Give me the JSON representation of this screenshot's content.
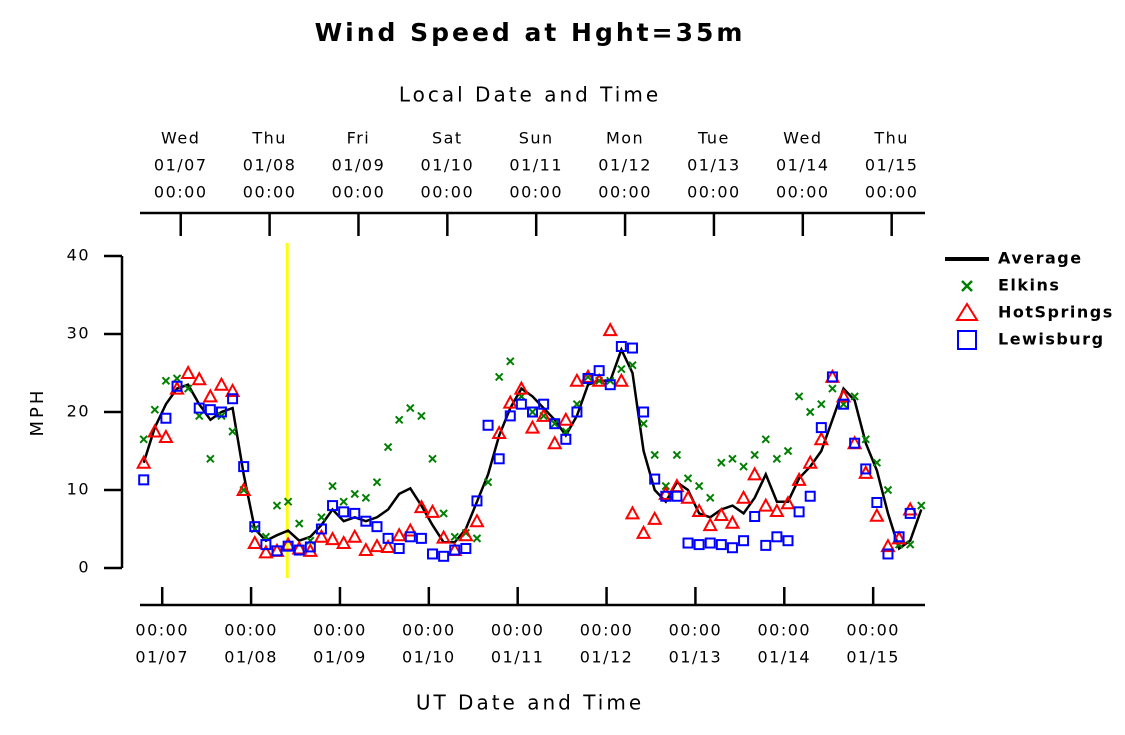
{
  "chart_data": {
    "type": "line",
    "title": "Wind Speed at Hght=35m",
    "x2label": "Local Date and Time",
    "xlabel": "UT Date and Time",
    "ylabel": "MPH",
    "xlim": [
      "01/06 18:00",
      "01/15 14:00"
    ],
    "ylim": [
      0,
      40
    ],
    "yticks": [
      0,
      10,
      20,
      30,
      40
    ],
    "xticks": [
      {
        "value": "01/07 00:00",
        "label": [
          "00:00",
          "01/07"
        ]
      },
      {
        "value": "01/08 00:00",
        "label": [
          "00:00",
          "01/08"
        ]
      },
      {
        "value": "01/09 00:00",
        "label": [
          "00:00",
          "01/09"
        ]
      },
      {
        "value": "01/10 00:00",
        "label": [
          "00:00",
          "01/10"
        ]
      },
      {
        "value": "01/11 00:00",
        "label": [
          "00:00",
          "01/11"
        ]
      },
      {
        "value": "01/12 00:00",
        "label": [
          "00:00",
          "01/12"
        ]
      },
      {
        "value": "01/13 00:00",
        "label": [
          "00:00",
          "01/13"
        ]
      },
      {
        "value": "01/14 00:00",
        "label": [
          "00:00",
          "01/14"
        ]
      },
      {
        "value": "01/15 00:00",
        "label": [
          "00:00",
          "01/15"
        ]
      }
    ],
    "x2ticks": [
      {
        "value": "01/07 05:00",
        "label": [
          "Wed",
          "01/07",
          "00:00"
        ]
      },
      {
        "value": "01/08 05:00",
        "label": [
          "Thu",
          "01/08",
          "00:00"
        ]
      },
      {
        "value": "01/09 05:00",
        "label": [
          "Fri",
          "01/09",
          "00:00"
        ]
      },
      {
        "value": "01/10 05:00",
        "label": [
          "Sat",
          "01/10",
          "00:00"
        ]
      },
      {
        "value": "01/11 05:00",
        "label": [
          "Sun",
          "01/11",
          "00:00"
        ]
      },
      {
        "value": "01/12 05:00",
        "label": [
          "Mon",
          "01/12",
          "00:00"
        ]
      },
      {
        "value": "01/13 05:00",
        "label": [
          "Tue",
          "01/13",
          "00:00"
        ]
      },
      {
        "value": "01/14 05:00",
        "label": [
          "Wed",
          "01/14",
          "00:00"
        ]
      },
      {
        "value": "01/15 05:00",
        "label": [
          "Thu",
          "01/15",
          "00:00"
        ]
      }
    ],
    "marker_line": {
      "x": "01/08 09:45",
      "color": "#ffff00"
    },
    "legend": "right",
    "x": [
      "01/06 19:00",
      "01/06 22:00",
      "01/07 01:00",
      "01/07 04:00",
      "01/07 07:00",
      "01/07 10:00",
      "01/07 13:00",
      "01/07 16:00",
      "01/07 19:00",
      "01/07 22:00",
      "01/08 01:00",
      "01/08 04:00",
      "01/08 07:00",
      "01/08 10:00",
      "01/08 13:00",
      "01/08 16:00",
      "01/08 19:00",
      "01/08 22:00",
      "01/09 01:00",
      "01/09 04:00",
      "01/09 07:00",
      "01/09 10:00",
      "01/09 13:00",
      "01/09 16:00",
      "01/09 19:00",
      "01/09 22:00",
      "01/10 01:00",
      "01/10 04:00",
      "01/10 07:00",
      "01/10 10:00",
      "01/10 13:00",
      "01/10 16:00",
      "01/10 19:00",
      "01/10 22:00",
      "01/11 01:00",
      "01/11 04:00",
      "01/11 07:00",
      "01/11 10:00",
      "01/11 13:00",
      "01/11 16:00",
      "01/11 19:00",
      "01/11 22:00",
      "01/12 01:00",
      "01/12 04:00",
      "01/12 07:00",
      "01/12 10:00",
      "01/12 13:00",
      "01/12 16:00",
      "01/12 19:00",
      "01/12 22:00",
      "01/13 01:00",
      "01/13 04:00",
      "01/13 07:00",
      "01/13 10:00",
      "01/13 13:00",
      "01/13 16:00",
      "01/13 19:00",
      "01/13 22:00",
      "01/14 01:00",
      "01/14 04:00",
      "01/14 07:00",
      "01/14 10:00",
      "01/14 13:00",
      "01/14 16:00",
      "01/14 19:00",
      "01/14 22:00",
      "01/15 01:00",
      "01/15 04:00",
      "01/15 07:00",
      "01/15 10:00",
      "01/15 13:00"
    ],
    "series": [
      {
        "name": "Average",
        "marker": "line",
        "color": "#000000",
        "values": [
          13.5,
          18,
          21,
          23,
          23.5,
          21,
          19,
          20,
          20.5,
          12,
          5,
          3.5,
          4.2,
          4.8,
          3.5,
          4,
          5.5,
          7.5,
          6,
          6.5,
          6,
          6.5,
          7.5,
          9.5,
          10.2,
          8,
          5.5,
          3.3,
          3.3,
          5,
          8.5,
          12,
          17,
          20.5,
          23,
          22,
          20.5,
          19,
          17,
          19.5,
          23.5,
          24,
          24,
          28,
          25,
          15,
          10,
          8.5,
          11,
          10,
          7,
          6.5,
          7.5,
          8,
          7,
          9,
          12,
          8.5,
          8.5,
          11.5,
          13,
          15,
          19,
          23,
          21.5,
          16,
          12.5,
          7,
          2.5,
          3.5,
          7.5
        ]
      },
      {
        "name": "Elkins",
        "marker": "x",
        "color": "#008000",
        "values": [
          16.5,
          20.3,
          24,
          24.3,
          23,
          19.5,
          14,
          19.5,
          17.5,
          10,
          5,
          4,
          8,
          8.5,
          5.7,
          3.5,
          6.5,
          10.5,
          8.5,
          9.5,
          9,
          11,
          15.5,
          19,
          20.5,
          19.5,
          14,
          7,
          4,
          4.5,
          3.8,
          11,
          24.5,
          26.5,
          22,
          20,
          19.5,
          18.5,
          17.5,
          21,
          24.5,
          24,
          24,
          25.5,
          26,
          18.5,
          14.5,
          10.5,
          14.5,
          11.5,
          10.5,
          9,
          13.5,
          14,
          13,
          14.5,
          16.5,
          14,
          15,
          22,
          20,
          21,
          23,
          21,
          22,
          16.5,
          13.5,
          10,
          3,
          3,
          8
        ]
      },
      {
        "name": "HotSprings",
        "marker": "triangle",
        "color": "#ff0000",
        "values": [
          13.5,
          17.5,
          16.8,
          23,
          25,
          24.2,
          22,
          23.5,
          22.7,
          10,
          3.2,
          2,
          2.2,
          3,
          2.5,
          2.2,
          4,
          3.7,
          3.2,
          4,
          2.3,
          2.8,
          2.7,
          4.2,
          4.8,
          7.8,
          7.2,
          3.9,
          2.3,
          4.2,
          6,
          null,
          17.3,
          21.2,
          23,
          18,
          19.5,
          16,
          19,
          24,
          24.5,
          24,
          30.5,
          24,
          7,
          4.5,
          6.3,
          9.5,
          10.5,
          9,
          7.3,
          5.5,
          6.8,
          5.8,
          9,
          12,
          8,
          7.3,
          8.3,
          11.3,
          13.5,
          16.5,
          24.5,
          22,
          16,
          12.2,
          6.7,
          2.8,
          3.8,
          7.5,
          null
        ]
      },
      {
        "name": "Lewisburg",
        "marker": "square",
        "color": "#0000ff",
        "values": [
          11.3,
          null,
          19.2,
          23.3,
          null,
          20.5,
          20.3,
          20,
          21.7,
          13,
          5.3,
          3,
          2.2,
          2.8,
          2.3,
          2.7,
          5,
          8,
          7.2,
          7,
          6,
          5.3,
          3.8,
          2.5,
          4,
          3.8,
          1.8,
          1.5,
          2.3,
          2.5,
          8.6,
          18.3,
          14,
          19.5,
          21,
          20,
          21,
          18.5,
          16.5,
          20,
          24.3,
          25.3,
          23.5,
          28.4,
          28.2,
          20,
          11.4,
          9.2,
          9.2,
          3.2,
          3,
          3.2,
          3,
          2.6,
          3.5,
          6.6,
          2.9,
          4,
          3.5,
          7.2,
          9.2,
          18,
          24.5,
          21,
          16,
          12.7,
          8.4,
          1.8,
          4,
          7,
          null
        ]
      }
    ]
  }
}
